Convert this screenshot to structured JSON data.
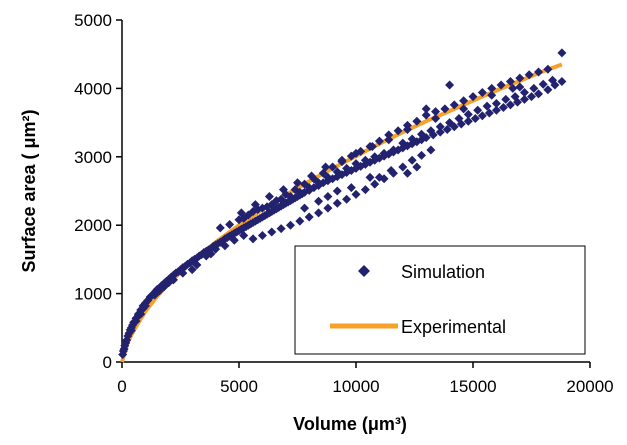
{
  "colors": {
    "simulation": "#22226e",
    "experimental": "#f7a12a",
    "axis": "#000000",
    "background": "#ffffff"
  },
  "chart_data": {
    "type": "scatter",
    "xlabel": "Volume (μm³)",
    "ylabel": "Surface area ( μm²)",
    "xlim": [
      0,
      20000
    ],
    "ylim": [
      0,
      5000
    ],
    "x_ticks": [
      "0",
      "5000",
      "10000",
      "15000",
      "20000"
    ],
    "y_ticks": [
      "0",
      "1000",
      "2000",
      "3000",
      "4000",
      "5000"
    ],
    "grid": false,
    "legend_position": "bottom-right",
    "series": [
      {
        "name": "Simulation",
        "kind": "scatter",
        "marker": "diamond",
        "points": [
          [
            30,
            110
          ],
          [
            60,
            160
          ],
          [
            90,
            190
          ],
          [
            120,
            240
          ],
          [
            160,
            280
          ],
          [
            200,
            320
          ],
          [
            250,
            380
          ],
          [
            300,
            420
          ],
          [
            350,
            470
          ],
          [
            400,
            500
          ],
          [
            450,
            540
          ],
          [
            500,
            580
          ],
          [
            600,
            640
          ],
          [
            700,
            700
          ],
          [
            800,
            760
          ],
          [
            900,
            820
          ],
          [
            1000,
            860
          ],
          [
            1100,
            900
          ],
          [
            1200,
            950
          ],
          [
            1300,
            980
          ],
          [
            1400,
            1020
          ],
          [
            1500,
            1060
          ],
          [
            1600,
            1080
          ],
          [
            1700,
            1120
          ],
          [
            1800,
            1150
          ],
          [
            1900,
            1180
          ],
          [
            2000,
            1210
          ],
          [
            2100,
            1240
          ],
          [
            2200,
            1270
          ],
          [
            2300,
            1300
          ],
          [
            2400,
            1320
          ],
          [
            2500,
            1350
          ],
          [
            2600,
            1380
          ],
          [
            2700,
            1400
          ],
          [
            2800,
            1430
          ],
          [
            2900,
            1450
          ],
          [
            3000,
            1480
          ],
          [
            3100,
            1500
          ],
          [
            3200,
            1520
          ],
          [
            3300,
            1550
          ],
          [
            3400,
            1570
          ],
          [
            3500,
            1600
          ],
          [
            3600,
            1620
          ],
          [
            3700,
            1640
          ],
          [
            3800,
            1660
          ],
          [
            3900,
            1690
          ],
          [
            4000,
            1710
          ],
          [
            4100,
            1730
          ],
          [
            4200,
            1750
          ],
          [
            4300,
            1770
          ],
          [
            4400,
            1800
          ],
          [
            4500,
            1820
          ],
          [
            4600,
            1840
          ],
          [
            4700,
            1860
          ],
          [
            4800,
            1880
          ],
          [
            4900,
            1900
          ],
          [
            5000,
            1920
          ],
          [
            5100,
            1940
          ],
          [
            5200,
            1960
          ],
          [
            5300,
            1980
          ],
          [
            5400,
            2000
          ],
          [
            5500,
            2020
          ],
          [
            5600,
            2040
          ],
          [
            5700,
            2060
          ],
          [
            5800,
            2080
          ],
          [
            5900,
            2100
          ],
          [
            6000,
            2120
          ],
          [
            6100,
            2140
          ],
          [
            6200,
            2160
          ],
          [
            6300,
            2180
          ],
          [
            6400,
            2200
          ],
          [
            6500,
            2220
          ],
          [
            6600,
            2240
          ],
          [
            6700,
            2260
          ],
          [
            6800,
            2280
          ],
          [
            6900,
            2300
          ],
          [
            7000,
            2320
          ],
          [
            7100,
            2340
          ],
          [
            7200,
            2360
          ],
          [
            7300,
            2380
          ],
          [
            7400,
            2400
          ],
          [
            7500,
            2420
          ],
          [
            7600,
            2440
          ],
          [
            7700,
            2460
          ],
          [
            7800,
            2480
          ],
          [
            8000,
            2510
          ],
          [
            8200,
            2550
          ],
          [
            8400,
            2580
          ],
          [
            8600,
            2620
          ],
          [
            8800,
            2650
          ],
          [
            9000,
            2680
          ],
          [
            9200,
            2710
          ],
          [
            9400,
            2740
          ],
          [
            9600,
            2770
          ],
          [
            9800,
            2800
          ],
          [
            10000,
            2830
          ],
          [
            10200,
            2860
          ],
          [
            10400,
            2890
          ],
          [
            10600,
            2920
          ],
          [
            10800,
            2950
          ],
          [
            11000,
            2980
          ],
          [
            11200,
            3010
          ],
          [
            11400,
            3040
          ],
          [
            11600,
            3070
          ],
          [
            11800,
            3100
          ],
          [
            12000,
            3130
          ],
          [
            12200,
            3160
          ],
          [
            12400,
            3190
          ],
          [
            12600,
            3220
          ],
          [
            12800,
            3250
          ],
          [
            13000,
            3280
          ],
          [
            13300,
            3320
          ],
          [
            13600,
            3360
          ],
          [
            13900,
            3400
          ],
          [
            14200,
            3440
          ],
          [
            14500,
            3480
          ],
          [
            14800,
            3520
          ],
          [
            15100,
            3560
          ],
          [
            15400,
            3600
          ],
          [
            15700,
            3640
          ],
          [
            16000,
            3680
          ],
          [
            16300,
            3720
          ],
          [
            16600,
            3760
          ],
          [
            16900,
            3800
          ],
          [
            17200,
            3840
          ],
          [
            17500,
            3880
          ],
          [
            17800,
            3920
          ],
          [
            18200,
            3980
          ],
          [
            18500,
            4050
          ],
          [
            18800,
            4100
          ],
          [
            4200,
            1960
          ],
          [
            4600,
            2010
          ],
          [
            5000,
            2080
          ],
          [
            5400,
            2150
          ],
          [
            5800,
            2230
          ],
          [
            6200,
            2270
          ],
          [
            6600,
            2360
          ],
          [
            7000,
            2450
          ],
          [
            7400,
            2520
          ],
          [
            7800,
            2600
          ],
          [
            8200,
            2680
          ],
          [
            8600,
            2760
          ],
          [
            9000,
            2850
          ],
          [
            9400,
            2930
          ],
          [
            9800,
            3010
          ],
          [
            10200,
            3080
          ],
          [
            10600,
            3150
          ],
          [
            11000,
            3230
          ],
          [
            11400,
            3320
          ],
          [
            11800,
            3380
          ],
          [
            12200,
            3460
          ],
          [
            12600,
            3520
          ],
          [
            13000,
            3610
          ],
          [
            13400,
            3660
          ],
          [
            13800,
            3700
          ],
          [
            14200,
            3760
          ],
          [
            14600,
            3820
          ],
          [
            15000,
            3880
          ],
          [
            15400,
            3940
          ],
          [
            15800,
            4000
          ],
          [
            16200,
            4050
          ],
          [
            16600,
            4100
          ],
          [
            17000,
            4150
          ],
          [
            17400,
            4200
          ],
          [
            17800,
            4240
          ],
          [
            18200,
            4280
          ],
          [
            18800,
            4520
          ],
          [
            14000,
            4050
          ],
          [
            16700,
            4000
          ],
          [
            13000,
            3700
          ],
          [
            5600,
            1800
          ],
          [
            6000,
            1850
          ],
          [
            6400,
            1900
          ],
          [
            6800,
            1950
          ],
          [
            7200,
            2000
          ],
          [
            7600,
            2060
          ],
          [
            8000,
            2120
          ],
          [
            8400,
            2180
          ],
          [
            8800,
            2250
          ],
          [
            9200,
            2320
          ],
          [
            9600,
            2380
          ],
          [
            10000,
            2450
          ],
          [
            10400,
            2520
          ],
          [
            10800,
            2600
          ],
          [
            11200,
            2680
          ],
          [
            11600,
            2760
          ],
          [
            12000,
            2850
          ],
          [
            12400,
            2950
          ],
          [
            12800,
            3020
          ],
          [
            13200,
            3100
          ],
          [
            11000,
            2700
          ],
          [
            11500,
            2800
          ],
          [
            12200,
            2760
          ],
          [
            12600,
            2850
          ],
          [
            10600,
            2700
          ],
          [
            9800,
            2550
          ],
          [
            9200,
            2500
          ],
          [
            8800,
            2420
          ],
          [
            8400,
            2350
          ],
          [
            7800,
            2250
          ],
          [
            3000,
            1350
          ],
          [
            3200,
            1420
          ],
          [
            3600,
            1550
          ],
          [
            3800,
            1580
          ],
          [
            4000,
            1650
          ],
          [
            4400,
            1700
          ],
          [
            4800,
            1780
          ],
          [
            5200,
            1850
          ],
          [
            2600,
            1300
          ],
          [
            2200,
            1200
          ],
          [
            1800,
            1100
          ],
          [
            1400,
            980
          ],
          [
            1000,
            820
          ],
          [
            800,
            700
          ],
          [
            600,
            600
          ],
          [
            400,
            460
          ],
          [
            700,
            680
          ],
          [
            900,
            780
          ],
          [
            1600,
            1040
          ],
          [
            2000,
            1160
          ],
          [
            5200,
            2100
          ],
          [
            5600,
            2200
          ],
          [
            6000,
            2250
          ],
          [
            6400,
            2300
          ],
          [
            6800,
            2380
          ],
          [
            7200,
            2420
          ],
          [
            7600,
            2480
          ],
          [
            8000,
            2550
          ],
          [
            8400,
            2620
          ],
          [
            8800,
            2700
          ],
          [
            9200,
            2780
          ],
          [
            9600,
            2830
          ],
          [
            10000,
            2900
          ],
          [
            10400,
            2950
          ],
          [
            10800,
            3000
          ],
          [
            11200,
            3050
          ],
          [
            11600,
            3100
          ],
          [
            12000,
            3200
          ],
          [
            12400,
            3260
          ],
          [
            12800,
            3330
          ],
          [
            13200,
            3380
          ],
          [
            13600,
            3440
          ],
          [
            14000,
            3500
          ],
          [
            14400,
            3560
          ],
          [
            14800,
            3620
          ],
          [
            15200,
            3680
          ],
          [
            15600,
            3740
          ],
          [
            16000,
            3780
          ],
          [
            16400,
            3840
          ],
          [
            16800,
            3880
          ],
          [
            17200,
            3940
          ],
          [
            17600,
            4000
          ],
          [
            18000,
            4060
          ],
          [
            18400,
            4120
          ],
          [
            17000,
            4020
          ],
          [
            15800,
            3900
          ],
          [
            14600,
            3700
          ],
          [
            13400,
            3560
          ],
          [
            12200,
            3400
          ],
          [
            11400,
            3250
          ],
          [
            10700,
            3150
          ],
          [
            10000,
            3050
          ],
          [
            9400,
            2950
          ],
          [
            8700,
            2850
          ],
          [
            8100,
            2720
          ],
          [
            7500,
            2620
          ],
          [
            6900,
            2520
          ],
          [
            6300,
            2420
          ],
          [
            5700,
            2300
          ],
          [
            5100,
            2180
          ]
        ]
      },
      {
        "name": "Experimental",
        "kind": "line",
        "points": [
          [
            0,
            0
          ],
          [
            250,
            290
          ],
          [
            500,
            460
          ],
          [
            1000,
            740
          ],
          [
            1500,
            960
          ],
          [
            2000,
            1150
          ],
          [
            3000,
            1470
          ],
          [
            4000,
            1750
          ],
          [
            5000,
            2000
          ],
          [
            6000,
            2230
          ],
          [
            7000,
            2440
          ],
          [
            8000,
            2640
          ],
          [
            9000,
            2830
          ],
          [
            10000,
            3010
          ],
          [
            11000,
            3190
          ],
          [
            12000,
            3360
          ],
          [
            13000,
            3520
          ],
          [
            14000,
            3670
          ],
          [
            15000,
            3820
          ],
          [
            16000,
            3970
          ],
          [
            17000,
            4110
          ],
          [
            18000,
            4250
          ],
          [
            18800,
            4350
          ]
        ]
      }
    ]
  }
}
